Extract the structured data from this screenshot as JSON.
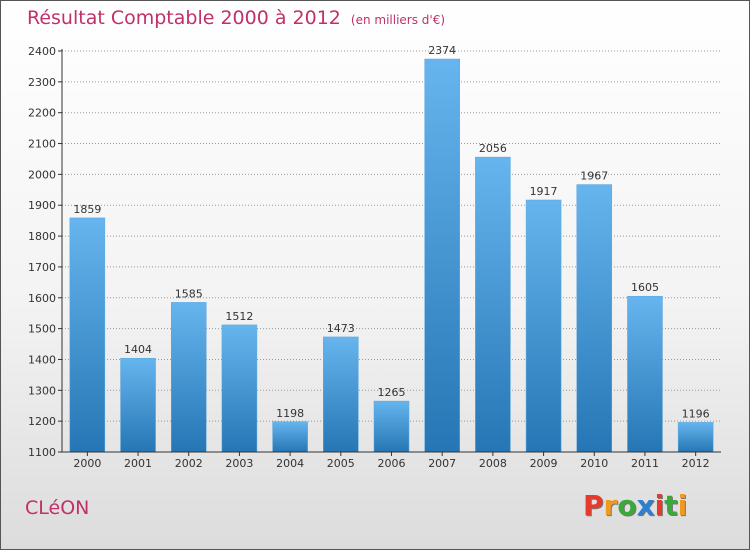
{
  "header": {
    "title": "Résultat Comptable 2000 à 2012",
    "unit": "(en milliers d'€)"
  },
  "footer": {
    "town": "CLéON",
    "logo": "Proxiti",
    "logo_colors": [
      "#e8392a",
      "#f19a1f",
      "#3aa83a",
      "#2f7fd0",
      "#e8392a",
      "#3aa83a",
      "#f19a1f"
    ]
  },
  "colors": {
    "bar_top": "#66b5ee",
    "bar_bottom": "#2676b5",
    "axis": "#333333",
    "grid": "#999999"
  },
  "chart_data": {
    "type": "bar",
    "title": "Résultat Comptable 2000 à 2012",
    "categories": [
      "2000",
      "2001",
      "2002",
      "2003",
      "2004",
      "2005",
      "2006",
      "2007",
      "2008",
      "2009",
      "2010",
      "2011",
      "2012"
    ],
    "values": [
      1859,
      1404,
      1585,
      1512,
      1198,
      1473,
      1265,
      2374,
      2056,
      1917,
      1967,
      1605,
      1196
    ],
    "ylim": [
      1100,
      2400
    ],
    "yticks": [
      1100,
      1200,
      1300,
      1400,
      1500,
      1600,
      1700,
      1800,
      1900,
      2000,
      2100,
      2200,
      2300,
      2400
    ],
    "grid": true,
    "xlabel": "",
    "ylabel": ""
  }
}
